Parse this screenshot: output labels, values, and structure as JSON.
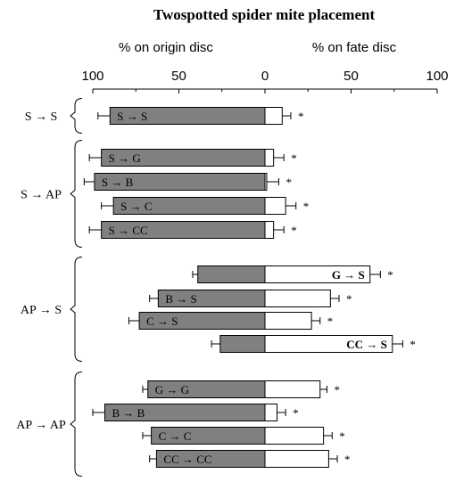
{
  "chart_data": {
    "type": "bar",
    "title": "Twospotted spider mite placement",
    "left_axis_label": "% on origin disc",
    "right_axis_label": "% on fate disc",
    "xlim": [
      -100,
      100
    ],
    "tick_values": [
      -100,
      -50,
      0,
      50,
      100
    ],
    "tick_labels": [
      "100",
      "50",
      "0",
      "50",
      "100"
    ],
    "colors": {
      "origin": "#808080",
      "fate": "#ffffff",
      "stroke": "#000000"
    },
    "significance_marker": "*",
    "groups": [
      {
        "label": "S → S",
        "start": 0,
        "end": 0
      },
      {
        "label": "S → AP",
        "start": 1,
        "end": 4
      },
      {
        "label": "AP → S",
        "start": 5,
        "end": 8
      },
      {
        "label": "AP → AP",
        "start": 9,
        "end": 12
      }
    ],
    "bars": [
      {
        "label": "S → S",
        "origin": 90,
        "fate": 10,
        "origin_err": 7,
        "fate_err": 5,
        "sig": "*",
        "label_side": "origin"
      },
      {
        "label": "S → G",
        "origin": 95,
        "fate": 5,
        "origin_err": 7,
        "fate_err": 6,
        "sig": "*",
        "label_side": "origin"
      },
      {
        "label": "S → B",
        "origin": 99,
        "fate": 1,
        "origin_err": 6,
        "fate_err": 7,
        "sig": "*",
        "label_side": "origin"
      },
      {
        "label": "S → C",
        "origin": 88,
        "fate": 12,
        "origin_err": 7,
        "fate_err": 6,
        "sig": "*",
        "label_side": "origin"
      },
      {
        "label": "S → CC",
        "origin": 95,
        "fate": 5,
        "origin_err": 7,
        "fate_err": 6,
        "sig": "*",
        "label_side": "origin"
      },
      {
        "label": "G → S",
        "origin": 39,
        "fate": 61,
        "origin_err": 3,
        "fate_err": 6,
        "sig": "*",
        "label_side": "fate"
      },
      {
        "label": "B → S",
        "origin": 62,
        "fate": 38,
        "origin_err": 5,
        "fate_err": 5,
        "sig": "*",
        "label_side": "origin"
      },
      {
        "label": "C → S",
        "origin": 73,
        "fate": 27,
        "origin_err": 6,
        "fate_err": 5,
        "sig": "*",
        "label_side": "origin"
      },
      {
        "label": "CC → S",
        "origin": 26,
        "fate": 74,
        "origin_err": 5,
        "fate_err": 6,
        "sig": "*",
        "label_side": "fate"
      },
      {
        "label": "G → G",
        "origin": 68,
        "fate": 32,
        "origin_err": 3,
        "fate_err": 4,
        "sig": "*",
        "label_side": "origin"
      },
      {
        "label": "B → B",
        "origin": 93,
        "fate": 7,
        "origin_err": 7,
        "fate_err": 5,
        "sig": "*",
        "label_side": "origin"
      },
      {
        "label": "C → C",
        "origin": 66,
        "fate": 34,
        "origin_err": 5,
        "fate_err": 5,
        "sig": "*",
        "label_side": "origin"
      },
      {
        "label": "CC → CC",
        "origin": 63,
        "fate": 37,
        "origin_err": 4,
        "fate_err": 5,
        "sig": "*",
        "label_side": "origin"
      }
    ]
  }
}
